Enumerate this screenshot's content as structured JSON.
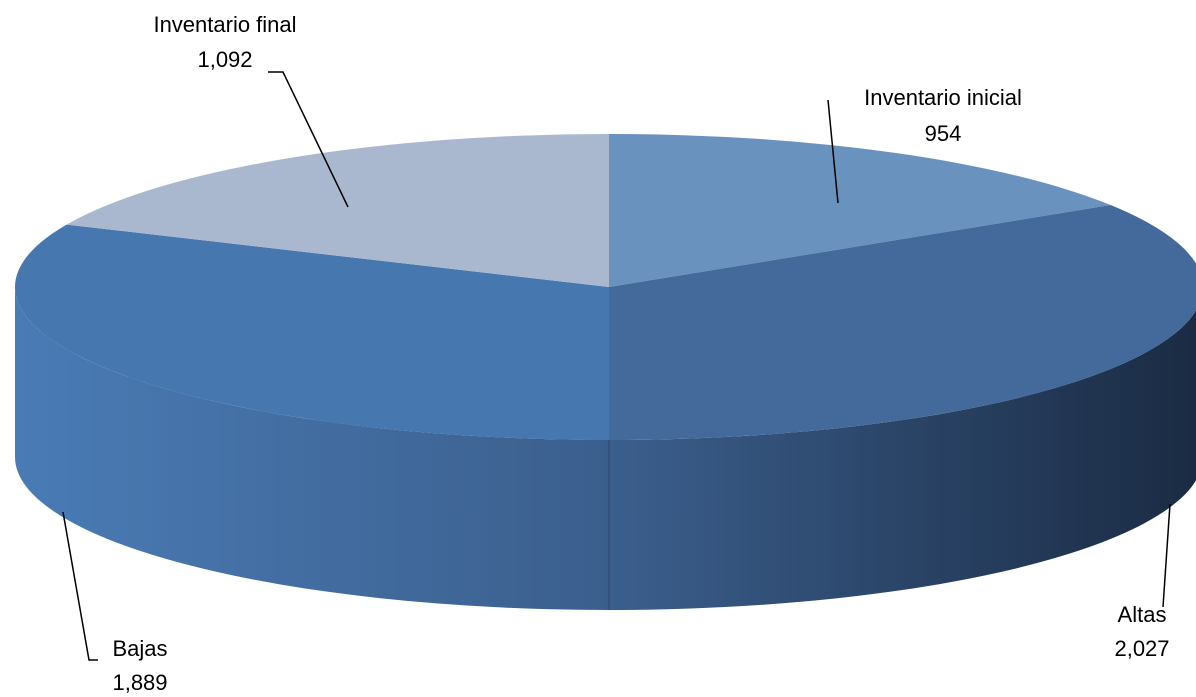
{
  "chart_data": {
    "type": "pie",
    "style": "3d",
    "categories": [
      "Inventario inicial",
      "Altas",
      "Bajas",
      "Inventario final"
    ],
    "values": [
      954,
      2027,
      1889,
      1092
    ],
    "value_labels": [
      "954",
      "2,027",
      "1,889",
      "1,092"
    ],
    "colors": [
      "#6a92bf",
      "#436a9a",
      "#4677ae",
      "#aab8cf"
    ],
    "legend": "none",
    "data_labels": "category and value, outside with leader lines"
  }
}
